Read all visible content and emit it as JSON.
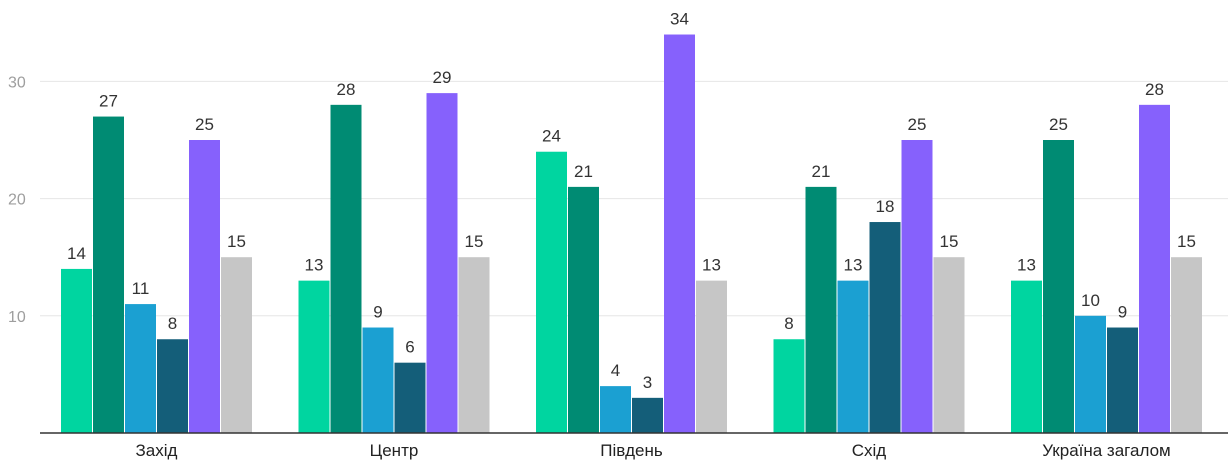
{
  "chart_data": {
    "type": "bar",
    "categories": [
      "Захід",
      "Центр",
      "Південь",
      "Схід",
      "Україна загалом"
    ],
    "series": [
      {
        "values": [
          14,
          13,
          24,
          8,
          13
        ],
        "color": "#00d5a0"
      },
      {
        "values": [
          27,
          28,
          21,
          21,
          25
        ],
        "color": "#008b73"
      },
      {
        "values": [
          11,
          9,
          4,
          13,
          10
        ],
        "color": "#1ba0d2"
      },
      {
        "values": [
          8,
          6,
          3,
          18,
          9
        ],
        "color": "#145e79"
      },
      {
        "values": [
          25,
          29,
          34,
          25,
          28
        ],
        "color": "#8661fc"
      },
      {
        "values": [
          15,
          15,
          13,
          15,
          15
        ],
        "color": "#c6c6c6"
      }
    ],
    "yticks": [
      10,
      20,
      30
    ],
    "ylim": [
      0,
      36
    ],
    "grid": true,
    "legend": "none",
    "title": "",
    "xlabel": "",
    "ylabel": ""
  }
}
